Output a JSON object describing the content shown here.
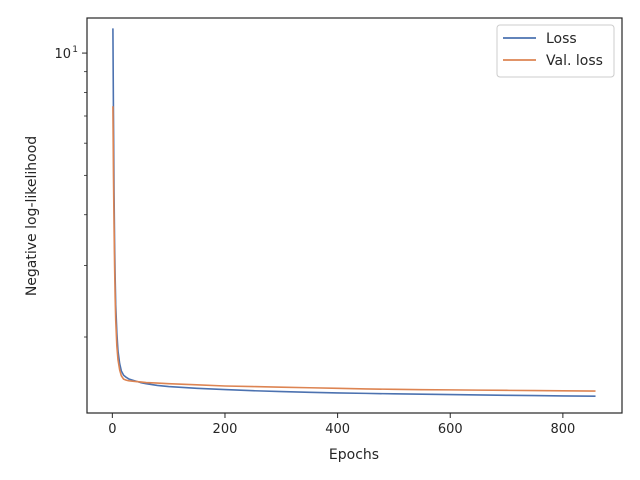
{
  "chart_data": {
    "type": "line",
    "title": "",
    "xlabel": "Epochs",
    "ylabel": "Negative log-likelihood",
    "xlim": [
      -45,
      905
    ],
    "ylim": [
      1.3,
      12.2
    ],
    "yscale": "log",
    "x_ticks": [
      0,
      200,
      400,
      600,
      800
    ],
    "x_tick_labels": [
      "0",
      "200",
      "400",
      "600",
      "800"
    ],
    "y_major_ticks": [
      10
    ],
    "y_tick_labels": [
      "10^1"
    ],
    "grid": false,
    "legend_position": "top-right",
    "series": [
      {
        "name": "Loss",
        "color": "#4c72b0",
        "x": [
          1,
          2,
          3,
          4,
          5,
          6,
          8,
          10,
          13,
          16,
          20,
          25,
          30,
          40,
          50,
          60,
          80,
          100,
          150,
          200,
          250,
          300,
          350,
          400,
          450,
          500,
          550,
          600,
          650,
          700,
          750,
          800,
          858
        ],
        "y": [
          11.5,
          7.0,
          4.6,
          3.4,
          2.8,
          2.4,
          2.05,
          1.85,
          1.72,
          1.65,
          1.61,
          1.59,
          1.575,
          1.56,
          1.545,
          1.535,
          1.52,
          1.51,
          1.495,
          1.485,
          1.475,
          1.468,
          1.462,
          1.457,
          1.453,
          1.449,
          1.446,
          1.443,
          1.44,
          1.437,
          1.435,
          1.432,
          1.43
        ]
      },
      {
        "name": "Val. loss",
        "color": "#dd8452",
        "x": [
          1,
          2,
          3,
          4,
          5,
          6,
          8,
          10,
          13,
          16,
          20,
          25,
          30,
          40,
          50,
          60,
          80,
          100,
          150,
          200,
          250,
          300,
          350,
          400,
          450,
          500,
          550,
          600,
          650,
          700,
          750,
          800,
          858
        ],
        "y": [
          7.4,
          5.0,
          3.8,
          3.0,
          2.5,
          2.2,
          1.9,
          1.76,
          1.66,
          1.605,
          1.575,
          1.565,
          1.56,
          1.555,
          1.55,
          1.545,
          1.54,
          1.535,
          1.525,
          1.515,
          1.51,
          1.505,
          1.5,
          1.495,
          1.49,
          1.487,
          1.484,
          1.482,
          1.48,
          1.478,
          1.476,
          1.474,
          1.472
        ]
      }
    ]
  }
}
